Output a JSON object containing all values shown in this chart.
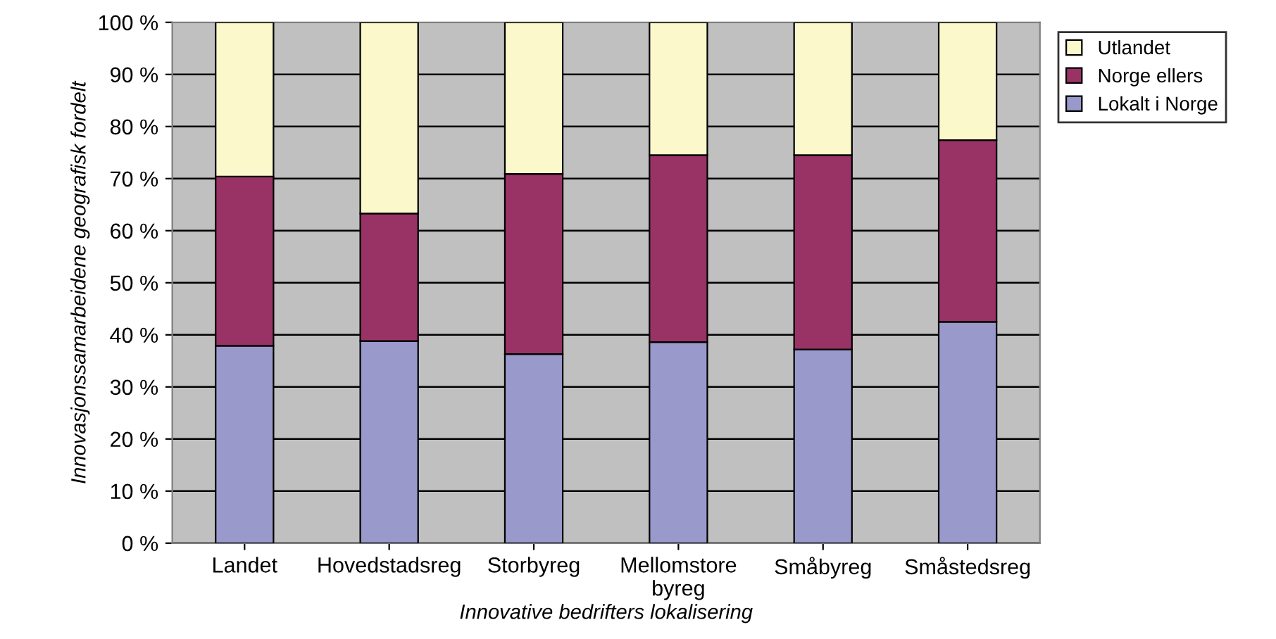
{
  "chart_data": {
    "type": "bar",
    "stacked": true,
    "xlabel": "Innovative bedrifters lokalisering",
    "ylabel": "Innovasjonssamarbeidene geografisk fordelt",
    "categories": [
      "Landet",
      "Hovedstadsreg",
      "Storbyreg",
      "Mellomstore\nbyreg",
      "Småbyreg",
      "Småstedsreg"
    ],
    "series": [
      {
        "name": "Lokalt i Norge",
        "color": "#9999cc",
        "values": [
          37.9,
          38.8,
          36.3,
          38.6,
          37.2,
          42.5
        ]
      },
      {
        "name": "Norge ellers",
        "color": "#993366",
        "values": [
          32.5,
          24.5,
          34.6,
          35.9,
          37.3,
          34.9
        ]
      },
      {
        "name": "Utlandet",
        "color": "#fbf8cc",
        "values": [
          29.6,
          36.7,
          29.1,
          25.5,
          25.5,
          22.6
        ]
      }
    ],
    "ylim": [
      0,
      100
    ],
    "yticks": [
      {
        "value": 0,
        "label": "0 %"
      },
      {
        "value": 10,
        "label": "10 %"
      },
      {
        "value": 20,
        "label": "20 %"
      },
      {
        "value": 30,
        "label": "30 %"
      },
      {
        "value": 40,
        "label": "40 %"
      },
      {
        "value": 50,
        "label": "50 %"
      },
      {
        "value": 60,
        "label": "60 %"
      },
      {
        "value": 70,
        "label": "70 %"
      },
      {
        "value": 80,
        "label": "80 %"
      },
      {
        "value": 90,
        "label": "90 %"
      },
      {
        "value": 100,
        "label": "100 %"
      }
    ],
    "grid": "y",
    "legend": "top right"
  }
}
